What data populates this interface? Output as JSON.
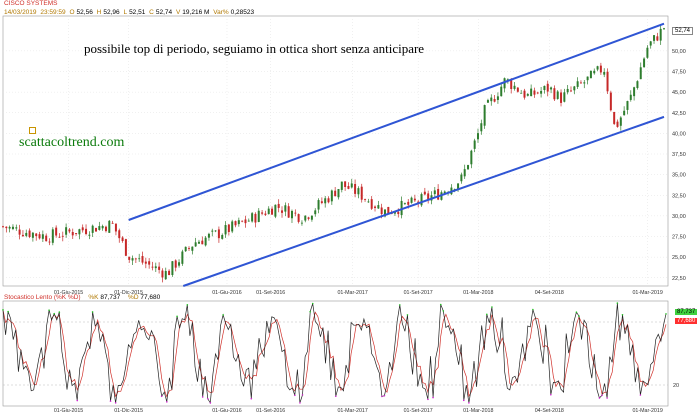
{
  "header": {
    "title": "CISCO SYSTEMS",
    "date": "14/03/2019",
    "time": "23:59:59",
    "open_label": "O",
    "open": "52,56",
    "high_label": "H",
    "high": "52,96",
    "low_label": "L",
    "low": "52,51",
    "close_label": "C",
    "close": "52,74",
    "volume_label": "V",
    "volume": "19,216 M",
    "var_label": "Var%",
    "var": "0,28523"
  },
  "annotation": "possibile top di periodo, seguiamo in ottica short senza anticipare",
  "watermark": "scattacoltrend.com",
  "last_price_label": "52,74",
  "stochastic": {
    "name": "Stocastico Lento (%K %D)",
    "k_label": "%K",
    "k_value": "87,737",
    "d_label": "%D",
    "d_value": "77,680"
  },
  "colors": {
    "candle_up": "#2e7d2e",
    "candle_down": "#c62828",
    "channel": "#2f55d4",
    "k_line": "#222222",
    "d_line": "#d0302a",
    "overbought": "#22c022",
    "oversold": "#cc22cc",
    "text_title": "#d0302a",
    "watermark": "#0a7a0a",
    "k_box": "#3fd23f",
    "d_box": "#ff3030"
  },
  "chart_data": [
    {
      "type": "candlestick",
      "title": "CISCO SYSTEMS",
      "ylim": [
        21.5,
        53.5
      ],
      "y_ticks": [
        "22,50",
        "25,00",
        "27,50",
        "30,00",
        "32,50",
        "35,00",
        "37,50",
        "40,00",
        "42,50",
        "45,00",
        "47,50",
        "50,00"
      ],
      "x_ticks": [
        "01-Giu-2015",
        "01-Dic-2015",
        "01-Giu-2016",
        "01-Set-2016",
        "01-Mar-2017",
        "01-Set-2017",
        "01-Mar-2018",
        "04-Set-2018",
        "01-Mar-2019"
      ],
      "x_tick_positions": [
        0.12,
        0.23,
        0.41,
        0.49,
        0.64,
        0.76,
        0.87,
        1.0,
        1.18
      ],
      "series": [
        {
          "name": "CISCO SYSTEMS",
          "x": [
            0.0,
            0.08,
            0.2,
            0.23,
            0.3,
            0.35,
            0.4,
            0.45,
            0.5,
            0.55,
            0.6,
            0.62,
            0.65,
            0.7,
            0.75,
            0.8,
            0.84,
            0.87,
            0.88,
            0.92,
            0.96,
            1.0,
            1.02,
            1.06,
            1.1,
            1.12,
            1.15,
            1.18,
            1.21
          ],
          "close": [
            28.7,
            27.5,
            29.0,
            25.2,
            23.0,
            26.8,
            28.0,
            29.5,
            31.2,
            29.8,
            32.5,
            33.8,
            32.8,
            30.5,
            31.5,
            32.8,
            34.5,
            40.0,
            42.5,
            46.5,
            44.5,
            45.5,
            44.2,
            46.0,
            48.0,
            40.5,
            44.5,
            50.5,
            52.74
          ]
        }
      ]
    },
    {
      "type": "line",
      "title": "Stocastico Lento (%K %D)",
      "ylim": [
        0,
        100
      ],
      "levels": [
        20,
        80
      ],
      "series": [
        {
          "name": "%K",
          "last": 87.737
        },
        {
          "name": "%D",
          "last": 77.68
        }
      ]
    }
  ]
}
